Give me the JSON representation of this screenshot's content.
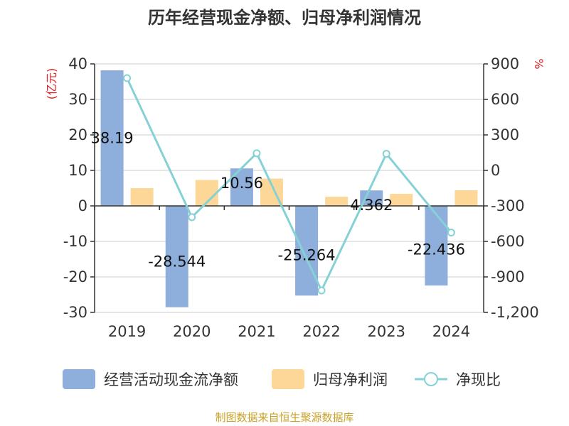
{
  "colors": {
    "bar1": "#8eaedb",
    "bar2": "#fdd797",
    "line": "#86d1d6",
    "unit": "#e02020",
    "source": "#c9a227",
    "axis": "#333333",
    "grid": "#cccccc"
  },
  "chart_data": {
    "type": "bar",
    "title": "历年经营现金净额、归母净利润情况",
    "categories": [
      "2019",
      "2020",
      "2021",
      "2022",
      "2023",
      "2024"
    ],
    "left_axis": {
      "unit": "(亿元)",
      "ylim": [
        -30,
        40
      ],
      "ticks": [
        -30,
        -20,
        -10,
        0,
        10,
        20,
        30,
        40
      ]
    },
    "right_axis": {
      "unit": "%",
      "ylim": [
        -1200,
        900
      ],
      "ticks": [
        -1200,
        -900,
        -600,
        -300,
        0,
        300,
        600,
        900
      ],
      "tick_labels": [
        "-1,200",
        "-900",
        "-600",
        "-300",
        "0",
        "300",
        "600",
        "900"
      ]
    },
    "grid": true,
    "legend_position": "bottom",
    "series": [
      {
        "name": "经营活动现金流净额",
        "type": "bar",
        "axis": "left",
        "values": [
          38.19,
          -28.544,
          10.56,
          -25.264,
          4.362,
          -22.436
        ],
        "labels": [
          "38.19",
          "-28.544",
          "10.56",
          "-25.264",
          "4.362",
          "-22.436"
        ]
      },
      {
        "name": "归母净利润",
        "type": "bar",
        "axis": "left",
        "values": [
          5.0,
          7.3,
          7.7,
          2.6,
          3.4,
          4.4
        ]
      },
      {
        "name": "净现比",
        "type": "line",
        "axis": "right",
        "values": [
          780,
          -395,
          145,
          -1015,
          140,
          -525
        ]
      }
    ]
  },
  "footer": {
    "source": "制图数据来自恒生聚源数据库"
  }
}
